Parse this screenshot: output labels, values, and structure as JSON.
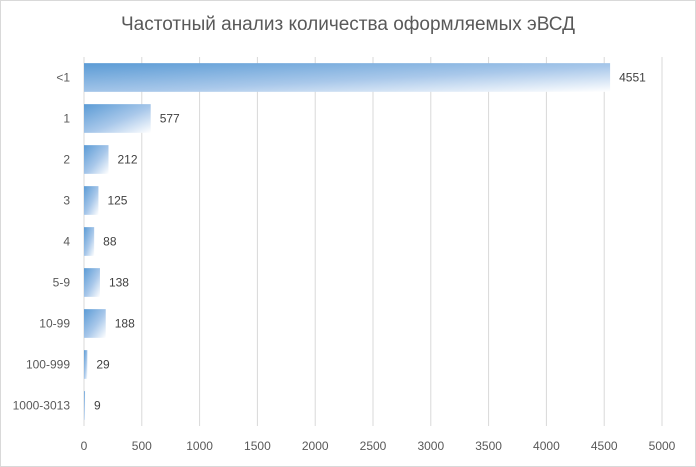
{
  "chart_data": {
    "type": "bar",
    "orientation": "horizontal",
    "title": "Частотный анализ количества оформляемых эВСД",
    "xlabel": "",
    "ylabel": "",
    "categories": [
      "<1",
      "1",
      "2",
      "3",
      "4",
      "5-9",
      "10-99",
      "100-999",
      "1000-3013"
    ],
    "values": [
      4551,
      577,
      212,
      125,
      88,
      138,
      188,
      29,
      9
    ],
    "xlim": [
      0,
      5000
    ],
    "x_ticks": [
      0,
      500,
      1000,
      1500,
      2000,
      2500,
      3000,
      3500,
      4000,
      4500,
      5000
    ],
    "grid": "vertical",
    "legend": "none",
    "data_labels": true,
    "bar_color": "#5b9bd5"
  }
}
